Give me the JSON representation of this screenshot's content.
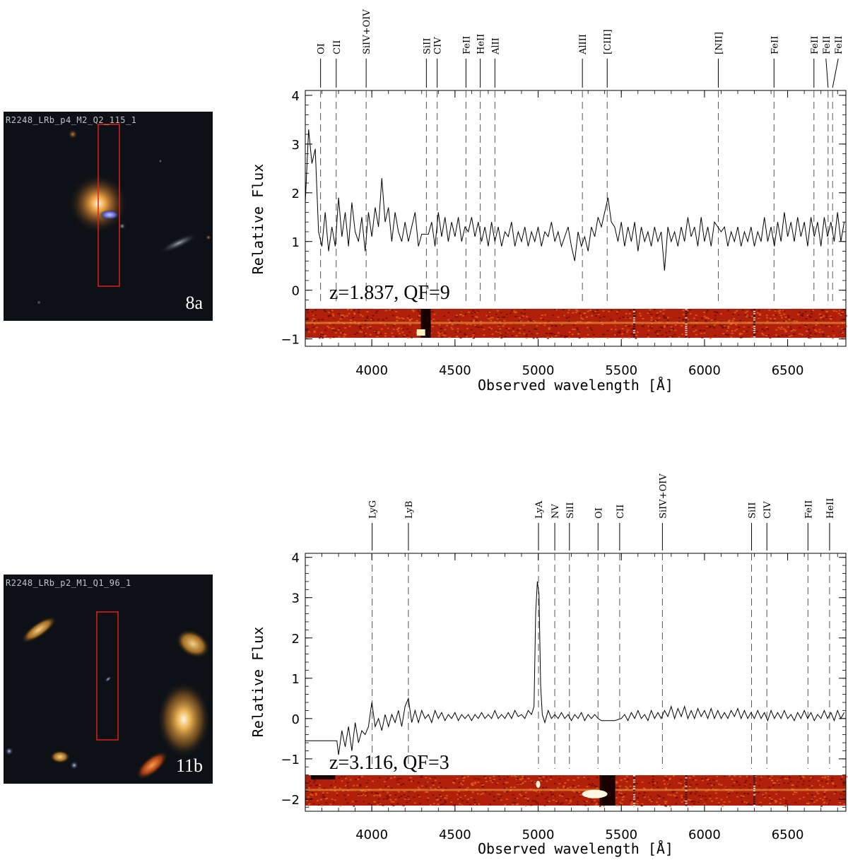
{
  "panels": [
    {
      "thumb_label": "R2248_LRb_p4_M2_Q2_115_1",
      "thumb_tag": "8a"
    },
    {
      "thumb_label": "R2248_LRb_p2_M1_Q1_96_1",
      "thumb_tag": "11b"
    }
  ],
  "colors": {
    "slit_box": "#e0201a",
    "spectrum": "#000000",
    "line_marker": "#555555",
    "strip_base": "#b0200a"
  },
  "chart_data": [
    {
      "type": "line",
      "xlabel": "Observed wavelength [Å]",
      "ylabel": "Relative Flux",
      "xlim": [
        3600,
        6850
      ],
      "ylim": [
        -1.15,
        4.1
      ],
      "xticks": [
        4000,
        4500,
        5000,
        5500,
        6000,
        6500
      ],
      "yticks": [
        -1,
        0,
        1,
        2,
        3,
        4
      ],
      "annotation": "z=1.837, QF=9",
      "lines": [
        {
          "label": "OI",
          "wave": 3692
        },
        {
          "label": "CII",
          "wave": 3786
        },
        {
          "label": "SiIV+OIV",
          "wave": 3966
        },
        {
          "label": "SiII",
          "wave": 4328
        },
        {
          "label": "CIV",
          "wave": 4393
        },
        {
          "label": "FeII",
          "wave": 4566
        },
        {
          "label": "HeII",
          "wave": 4652
        },
        {
          "label": "AlII",
          "wave": 4740
        },
        {
          "label": "AlIII",
          "wave": 5266
        },
        {
          "label": "[CIII]",
          "wave": 5415
        },
        {
          "label": "[NII]",
          "wave": 6083
        },
        {
          "label": "FeII",
          "wave": 6418
        },
        {
          "label": "FeII",
          "wave": 6658
        },
        {
          "label": "FeII",
          "wave": 6743
        },
        {
          "label": "FeII",
          "wave": 6770
        }
      ],
      "spectrum": [
        [
          3600,
          1.8
        ],
        [
          3620,
          3.3
        ],
        [
          3640,
          2.6
        ],
        [
          3660,
          2.9
        ],
        [
          3680,
          1.2
        ],
        [
          3700,
          0.9
        ],
        [
          3720,
          1.6
        ],
        [
          3740,
          0.8
        ],
        [
          3760,
          1.3
        ],
        [
          3780,
          0.9
        ],
        [
          3800,
          1.9
        ],
        [
          3820,
          1.1
        ],
        [
          3840,
          1.6
        ],
        [
          3860,
          0.9
        ],
        [
          3880,
          1.8
        ],
        [
          3900,
          1.2
        ],
        [
          3920,
          1.0
        ],
        [
          3940,
          1.5
        ],
        [
          3960,
          0.8
        ],
        [
          3980,
          1.6
        ],
        [
          4000,
          1.1
        ],
        [
          4020,
          1.7
        ],
        [
          4040,
          1.3
        ],
        [
          4060,
          2.3
        ],
        [
          4080,
          1.4
        ],
        [
          4100,
          1.7
        ],
        [
          4120,
          1.0
        ],
        [
          4140,
          1.6
        ],
        [
          4160,
          1.2
        ],
        [
          4180,
          1.0
        ],
        [
          4200,
          1.4
        ],
        [
          4220,
          1.0
        ],
        [
          4240,
          1.3
        ],
        [
          4260,
          1.6
        ],
        [
          4280,
          0.9
        ],
        [
          4300,
          1.15
        ],
        [
          4320,
          1.15
        ],
        [
          4340,
          1.15
        ],
        [
          4360,
          1.4
        ],
        [
          4380,
          0.9
        ],
        [
          4400,
          1.6
        ],
        [
          4420,
          1.1
        ],
        [
          4440,
          1.5
        ],
        [
          4460,
          1.0
        ],
        [
          4480,
          1.4
        ],
        [
          4500,
          1.1
        ],
        [
          4520,
          1.5
        ],
        [
          4540,
          1.0
        ],
        [
          4560,
          1.3
        ],
        [
          4580,
          1.2
        ],
        [
          4600,
          1.5
        ],
        [
          4620,
          1.1
        ],
        [
          4640,
          1.4
        ],
        [
          4660,
          1.0
        ],
        [
          4680,
          1.3
        ],
        [
          4700,
          0.9
        ],
        [
          4720,
          1.4
        ],
        [
          4740,
          1.0
        ],
        [
          4760,
          1.3
        ],
        [
          4780,
          0.9
        ],
        [
          4800,
          1.2
        ],
        [
          4820,
          1.1
        ],
        [
          4840,
          1.4
        ],
        [
          4860,
          0.9
        ],
        [
          4880,
          1.2
        ],
        [
          4900,
          1.0
        ],
        [
          4920,
          1.3
        ],
        [
          4940,
          0.9
        ],
        [
          4960,
          1.2
        ],
        [
          4980,
          1.0
        ],
        [
          5000,
          1.3
        ],
        [
          5020,
          0.9
        ],
        [
          5040,
          1.2
        ],
        [
          5060,
          1.1
        ],
        [
          5080,
          1.4
        ],
        [
          5100,
          1.0
        ],
        [
          5120,
          1.2
        ],
        [
          5140,
          0.9
        ],
        [
          5160,
          1.1
        ],
        [
          5180,
          1.3
        ],
        [
          5200,
          0.9
        ],
        [
          5220,
          0.6
        ],
        [
          5240,
          1.2
        ],
        [
          5260,
          0.9
        ],
        [
          5280,
          1.1
        ],
        [
          5300,
          0.8
        ],
        [
          5320,
          1.3
        ],
        [
          5340,
          1.1
        ],
        [
          5360,
          1.5
        ],
        [
          5380,
          1.3
        ],
        [
          5400,
          1.6
        ],
        [
          5420,
          1.9
        ],
        [
          5440,
          1.4
        ],
        [
          5460,
          1.3
        ],
        [
          5480,
          1.0
        ],
        [
          5500,
          1.4
        ],
        [
          5520,
          0.9
        ],
        [
          5540,
          1.3
        ],
        [
          5560,
          1.0
        ],
        [
          5580,
          1.4
        ],
        [
          5600,
          0.8
        ],
        [
          5620,
          1.3
        ],
        [
          5640,
          1.0
        ],
        [
          5660,
          1.2
        ],
        [
          5680,
          0.9
        ],
        [
          5700,
          1.3
        ],
        [
          5720,
          1.0
        ],
        [
          5740,
          1.2
        ],
        [
          5760,
          0.4
        ],
        [
          5780,
          1.3
        ],
        [
          5800,
          1.0
        ],
        [
          5820,
          1.2
        ],
        [
          5840,
          0.9
        ],
        [
          5860,
          1.3
        ],
        [
          5880,
          1.0
        ],
        [
          5900,
          1.5
        ],
        [
          5920,
          1.1
        ],
        [
          5940,
          1.3
        ],
        [
          5960,
          0.9
        ],
        [
          5980,
          1.5
        ],
        [
          6000,
          1.0
        ],
        [
          6020,
          1.3
        ],
        [
          6040,
          0.9
        ],
        [
          6060,
          1.4
        ],
        [
          6080,
          1.3
        ],
        [
          6100,
          1.2
        ],
        [
          6120,
          1.3
        ],
        [
          6140,
          0.9
        ],
        [
          6160,
          1.2
        ],
        [
          6180,
          1.0
        ],
        [
          6200,
          1.3
        ],
        [
          6220,
          0.9
        ],
        [
          6240,
          1.2
        ],
        [
          6260,
          1.0
        ],
        [
          6280,
          1.3
        ],
        [
          6300,
          0.9
        ],
        [
          6320,
          1.2
        ],
        [
          6340,
          1.0
        ],
        [
          6360,
          1.5
        ],
        [
          6380,
          1.0
        ],
        [
          6400,
          1.3
        ],
        [
          6420,
          0.9
        ],
        [
          6440,
          1.4
        ],
        [
          6460,
          1.0
        ],
        [
          6480,
          1.6
        ],
        [
          6500,
          1.1
        ],
        [
          6520,
          1.4
        ],
        [
          6540,
          1.0
        ],
        [
          6560,
          1.5
        ],
        [
          6580,
          1.1
        ],
        [
          6600,
          1.4
        ],
        [
          6620,
          0.9
        ],
        [
          6640,
          1.5
        ],
        [
          6660,
          1.1
        ],
        [
          6680,
          1.4
        ],
        [
          6700,
          0.9
        ],
        [
          6720,
          1.5
        ],
        [
          6740,
          1.1
        ],
        [
          6760,
          1.4
        ],
        [
          6780,
          1.0
        ],
        [
          6800,
          1.6
        ],
        [
          6820,
          1.0
        ],
        [
          6840,
          1.4
        ]
      ]
    },
    {
      "type": "line",
      "xlabel": "Observed wavelength [Å]",
      "ylabel": "Relative Flux",
      "xlim": [
        3600,
        6850
      ],
      "ylim": [
        -2.3,
        4.1
      ],
      "xticks": [
        4000,
        4500,
        5000,
        5500,
        6000,
        6500
      ],
      "yticks": [
        -2,
        -1,
        0,
        1,
        2,
        3,
        4
      ],
      "annotation": "z=3.116, QF=3",
      "lines": [
        {
          "label": "LyG",
          "wave": 4002
        },
        {
          "label": "LyB",
          "wave": 4220
        },
        {
          "label": "LyA",
          "wave": 5002
        },
        {
          "label": "NV",
          "wave": 5100
        },
        {
          "label": "SiII",
          "wave": 5188
        },
        {
          "label": "OI",
          "wave": 5360
        },
        {
          "label": "CII",
          "wave": 5490
        },
        {
          "label": "SiIV+OIV",
          "wave": 5747
        },
        {
          "label": "SiII",
          "wave": 6283
        },
        {
          "label": "CIV",
          "wave": 6375
        },
        {
          "label": "FeII",
          "wave": 6622
        },
        {
          "label": "HeII",
          "wave": 6752
        }
      ],
      "spectrum": [
        [
          3600,
          -0.55
        ],
        [
          3700,
          -0.55
        ],
        [
          3790,
          -0.55
        ],
        [
          3800,
          -0.9
        ],
        [
          3820,
          -0.3
        ],
        [
          3840,
          -0.7
        ],
        [
          3860,
          -0.2
        ],
        [
          3880,
          -0.8
        ],
        [
          3900,
          -0.1
        ],
        [
          3920,
          -0.6
        ],
        [
          3940,
          -0.3
        ],
        [
          3960,
          -0.4
        ],
        [
          3980,
          -0.2
        ],
        [
          4000,
          0.4
        ],
        [
          4020,
          -0.2
        ],
        [
          4040,
          0.0
        ],
        [
          4060,
          -0.3
        ],
        [
          4080,
          0.1
        ],
        [
          4100,
          -0.2
        ],
        [
          4120,
          0.1
        ],
        [
          4140,
          -0.1
        ],
        [
          4160,
          0.2
        ],
        [
          4180,
          -0.2
        ],
        [
          4200,
          0.3
        ],
        [
          4220,
          0.5
        ],
        [
          4240,
          -0.1
        ],
        [
          4260,
          0.2
        ],
        [
          4280,
          -0.1
        ],
        [
          4300,
          0.2
        ],
        [
          4320,
          0.0
        ],
        [
          4340,
          0.1
        ],
        [
          4360,
          -0.1
        ],
        [
          4380,
          0.2
        ],
        [
          4400,
          0.0
        ],
        [
          4420,
          0.15
        ],
        [
          4440,
          -0.05
        ],
        [
          4460,
          0.1
        ],
        [
          4480,
          0.0
        ],
        [
          4500,
          0.15
        ],
        [
          4520,
          -0.05
        ],
        [
          4540,
          0.1
        ],
        [
          4560,
          0.0
        ],
        [
          4580,
          0.1
        ],
        [
          4600,
          -0.05
        ],
        [
          4620,
          0.1
        ],
        [
          4640,
          0.0
        ],
        [
          4660,
          0.15
        ],
        [
          4680,
          0.0
        ],
        [
          4700,
          0.1
        ],
        [
          4720,
          0.0
        ],
        [
          4740,
          0.2
        ],
        [
          4760,
          0.0
        ],
        [
          4780,
          0.1
        ],
        [
          4800,
          0.0
        ],
        [
          4820,
          0.15
        ],
        [
          4840,
          0.0
        ],
        [
          4860,
          0.2
        ],
        [
          4880,
          0.05
        ],
        [
          4900,
          0.1
        ],
        [
          4920,
          0.0
        ],
        [
          4940,
          0.2
        ],
        [
          4960,
          0.1
        ],
        [
          4975,
          0.3
        ],
        [
          4985,
          2.6
        ],
        [
          4995,
          3.4
        ],
        [
          5005,
          3.1
        ],
        [
          5015,
          0.8
        ],
        [
          5025,
          0.1
        ],
        [
          5040,
          -0.1
        ],
        [
          5060,
          0.2
        ],
        [
          5080,
          0.0
        ],
        [
          5100,
          0.1
        ],
        [
          5120,
          0.0
        ],
        [
          5140,
          0.15
        ],
        [
          5160,
          0.0
        ],
        [
          5180,
          0.1
        ],
        [
          5200,
          -0.05
        ],
        [
          5220,
          0.1
        ],
        [
          5240,
          0.0
        ],
        [
          5260,
          0.15
        ],
        [
          5280,
          -0.05
        ],
        [
          5300,
          0.1
        ],
        [
          5320,
          0.0
        ],
        [
          5340,
          0.1
        ],
        [
          5360,
          0.0
        ],
        [
          5380,
          -0.05
        ],
        [
          5460,
          -0.05
        ],
        [
          5500,
          0.0
        ],
        [
          5520,
          0.1
        ],
        [
          5540,
          -0.05
        ],
        [
          5560,
          0.15
        ],
        [
          5580,
          0.0
        ],
        [
          5600,
          0.2
        ],
        [
          5620,
          0.0
        ],
        [
          5640,
          0.1
        ],
        [
          5660,
          -0.05
        ],
        [
          5680,
          0.2
        ],
        [
          5700,
          0.0
        ],
        [
          5720,
          0.15
        ],
        [
          5740,
          0.0
        ],
        [
          5760,
          0.2
        ],
        [
          5780,
          0.05
        ],
        [
          5800,
          0.3
        ],
        [
          5820,
          0.0
        ],
        [
          5840,
          0.25
        ],
        [
          5860,
          0.05
        ],
        [
          5880,
          0.3
        ],
        [
          5900,
          0.0
        ],
        [
          5920,
          0.2
        ],
        [
          5940,
          0.0
        ],
        [
          5960,
          0.25
        ],
        [
          5980,
          0.05
        ],
        [
          6000,
          0.2
        ],
        [
          6020,
          0.0
        ],
        [
          6040,
          0.25
        ],
        [
          6060,
          0.0
        ],
        [
          6080,
          0.2
        ],
        [
          6100,
          0.0
        ],
        [
          6120,
          0.15
        ],
        [
          6140,
          0.0
        ],
        [
          6160,
          0.2
        ],
        [
          6180,
          0.05
        ],
        [
          6200,
          0.25
        ],
        [
          6220,
          0.0
        ],
        [
          6240,
          0.2
        ],
        [
          6260,
          0.0
        ],
        [
          6280,
          0.15
        ],
        [
          6300,
          0.0
        ],
        [
          6320,
          0.2
        ],
        [
          6340,
          0.0
        ],
        [
          6360,
          0.15
        ],
        [
          6380,
          -0.05
        ],
        [
          6400,
          0.2
        ],
        [
          6420,
          0.0
        ],
        [
          6440,
          0.15
        ],
        [
          6460,
          0.0
        ],
        [
          6480,
          0.2
        ],
        [
          6500,
          0.0
        ],
        [
          6520,
          0.1
        ],
        [
          6540,
          -0.05
        ],
        [
          6560,
          0.15
        ],
        [
          6580,
          0.0
        ],
        [
          6600,
          0.2
        ],
        [
          6620,
          0.0
        ],
        [
          6640,
          0.15
        ],
        [
          6660,
          -0.05
        ],
        [
          6680,
          0.1
        ],
        [
          6700,
          0.0
        ],
        [
          6720,
          0.2
        ],
        [
          6740,
          0.0
        ],
        [
          6760,
          0.15
        ],
        [
          6780,
          -0.05
        ],
        [
          6800,
          0.2
        ],
        [
          6820,
          0.0
        ],
        [
          6840,
          0.15
        ]
      ]
    }
  ]
}
